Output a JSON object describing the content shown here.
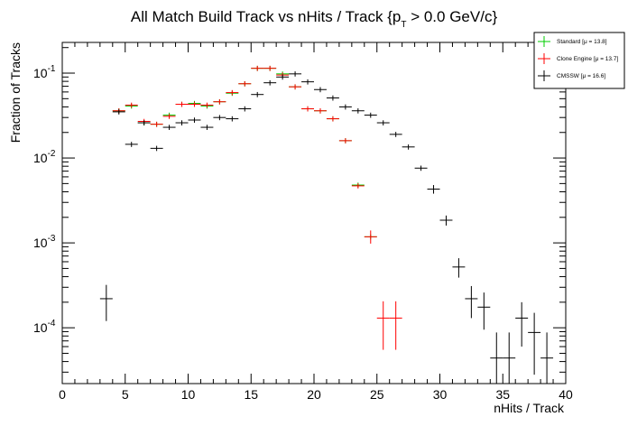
{
  "chart_data": {
    "type": "scatter",
    "title": {
      "main": "All Match Build Track vs nHits / Track {p",
      "sub": "T",
      "tail": " > 0.0 GeV/c}"
    },
    "xlabel": "nHits / Track",
    "ylabel": "Fraction of Tracks",
    "xlim": [
      0,
      40
    ],
    "ylim": [
      2.2e-05,
      0.23
    ],
    "yscale": "log",
    "grid": false,
    "legend_position": "top-right",
    "x_ticks": [
      "0",
      "5",
      "10",
      "15",
      "20",
      "25",
      "30",
      "35",
      "40"
    ],
    "y_ticks": [
      {
        "base": "10",
        "exp": "-4"
      },
      {
        "base": "10",
        "exp": "-3"
      },
      {
        "base": "10",
        "exp": "-2"
      },
      {
        "base": "10",
        "exp": "-1"
      }
    ],
    "series": [
      {
        "name": "Standard",
        "legend_stat": "[μ = 13.8]",
        "color": "#00cc00",
        "points": [
          {
            "x": 4.5,
            "y": 0.036
          },
          {
            "x": 5.5,
            "y": 0.041
          },
          {
            "x": 6.5,
            "y": 0.026
          },
          {
            "x": 7.5,
            "y": 0.025
          },
          {
            "x": 8.5,
            "y": 0.032
          },
          {
            "x": 9.5,
            "y": 0.043
          },
          {
            "x": 10.5,
            "y": 0.044
          },
          {
            "x": 11.5,
            "y": 0.041
          },
          {
            "x": 12.5,
            "y": 0.046
          },
          {
            "x": 13.5,
            "y": 0.058
          },
          {
            "x": 14.5,
            "y": 0.075
          },
          {
            "x": 15.5,
            "y": 0.114
          },
          {
            "x": 16.5,
            "y": 0.114
          },
          {
            "x": 17.5,
            "y": 0.098
          },
          {
            "x": 18.5,
            "y": 0.069
          },
          {
            "x": 19.5,
            "y": 0.038
          },
          {
            "x": 20.5,
            "y": 0.036
          },
          {
            "x": 21.5,
            "y": 0.029
          },
          {
            "x": 22.5,
            "y": 0.016
          },
          {
            "x": 23.5,
            "y": 0.0048
          },
          {
            "x": 24.5,
            "y": 0.00118
          }
        ]
      },
      {
        "name": "Clone Engine",
        "legend_stat": "[μ = 13.7]",
        "color": "#ff0000",
        "points": [
          {
            "x": 4.5,
            "y": 0.036
          },
          {
            "x": 5.5,
            "y": 0.042
          },
          {
            "x": 6.5,
            "y": 0.027
          },
          {
            "x": 7.5,
            "y": 0.025
          },
          {
            "x": 8.5,
            "y": 0.031
          },
          {
            "x": 9.5,
            "y": 0.043
          },
          {
            "x": 10.5,
            "y": 0.043
          },
          {
            "x": 11.5,
            "y": 0.042
          },
          {
            "x": 12.5,
            "y": 0.046
          },
          {
            "x": 13.5,
            "y": 0.059
          },
          {
            "x": 14.5,
            "y": 0.075
          },
          {
            "x": 15.5,
            "y": 0.114
          },
          {
            "x": 16.5,
            "y": 0.114
          },
          {
            "x": 17.5,
            "y": 0.095
          },
          {
            "x": 18.5,
            "y": 0.069
          },
          {
            "x": 19.5,
            "y": 0.038
          },
          {
            "x": 20.5,
            "y": 0.036
          },
          {
            "x": 21.5,
            "y": 0.029
          },
          {
            "x": 22.5,
            "y": 0.016
          },
          {
            "x": 23.5,
            "y": 0.0047
          },
          {
            "x": 24.5,
            "y": 0.00118,
            "err_lo": 0.00098,
            "err_hi": 0.0014
          },
          {
            "x": 25.5,
            "y": 0.00013,
            "err_lo": 5.5e-05,
            "err_hi": 0.000205
          },
          {
            "x": 26.5,
            "y": 0.00013,
            "err_lo": 5.5e-05,
            "err_hi": 0.000205
          }
        ]
      },
      {
        "name": "CMSSW",
        "legend_stat": "[μ = 16.6]",
        "color": "#000000",
        "points": [
          {
            "x": 3.5,
            "y": 0.00022,
            "err_lo": 0.00012,
            "err_hi": 0.00032
          },
          {
            "x": 4.5,
            "y": 0.035
          },
          {
            "x": 5.5,
            "y": 0.0145
          },
          {
            "x": 6.5,
            "y": 0.026
          },
          {
            "x": 7.5,
            "y": 0.013
          },
          {
            "x": 8.5,
            "y": 0.023
          },
          {
            "x": 9.5,
            "y": 0.026
          },
          {
            "x": 10.5,
            "y": 0.028
          },
          {
            "x": 11.5,
            "y": 0.023
          },
          {
            "x": 12.5,
            "y": 0.03
          },
          {
            "x": 13.5,
            "y": 0.029
          },
          {
            "x": 14.5,
            "y": 0.038
          },
          {
            "x": 15.5,
            "y": 0.056
          },
          {
            "x": 16.5,
            "y": 0.077
          },
          {
            "x": 17.5,
            "y": 0.09
          },
          {
            "x": 18.5,
            "y": 0.098
          },
          {
            "x": 19.5,
            "y": 0.079
          },
          {
            "x": 20.5,
            "y": 0.064
          },
          {
            "x": 21.5,
            "y": 0.051
          },
          {
            "x": 22.5,
            "y": 0.04
          },
          {
            "x": 23.5,
            "y": 0.036
          },
          {
            "x": 24.5,
            "y": 0.032
          },
          {
            "x": 25.5,
            "y": 0.026
          },
          {
            "x": 26.5,
            "y": 0.019
          },
          {
            "x": 27.5,
            "y": 0.0135
          },
          {
            "x": 28.5,
            "y": 0.0076
          },
          {
            "x": 29.5,
            "y": 0.0043,
            "err_lo": 0.0038,
            "err_hi": 0.0048
          },
          {
            "x": 30.5,
            "y": 0.00185,
            "err_lo": 0.0016,
            "err_hi": 0.0021
          },
          {
            "x": 31.5,
            "y": 0.00052,
            "err_lo": 0.00039,
            "err_hi": 0.00066
          },
          {
            "x": 32.5,
            "y": 0.00022,
            "err_lo": 0.00013,
            "err_hi": 0.00031
          },
          {
            "x": 33.5,
            "y": 0.000175,
            "err_lo": 9.5e-05,
            "err_hi": 0.00026
          },
          {
            "x": 34.5,
            "y": 4.4e-05,
            "err_lo": 1e-05,
            "err_hi": 8.8e-05
          },
          {
            "x": 35.5,
            "y": 4.4e-05,
            "err_lo": 1e-05,
            "err_hi": 8.8e-05
          },
          {
            "x": 36.5,
            "y": 0.00013,
            "err_lo": 6e-05,
            "err_hi": 0.0002
          },
          {
            "x": 37.5,
            "y": 8.8e-05,
            "err_lo": 2.8e-05,
            "err_hi": 0.00015
          },
          {
            "x": 38.5,
            "y": 4.4e-05,
            "err_lo": 1e-05,
            "err_hi": 8.8e-05
          }
        ]
      }
    ]
  }
}
